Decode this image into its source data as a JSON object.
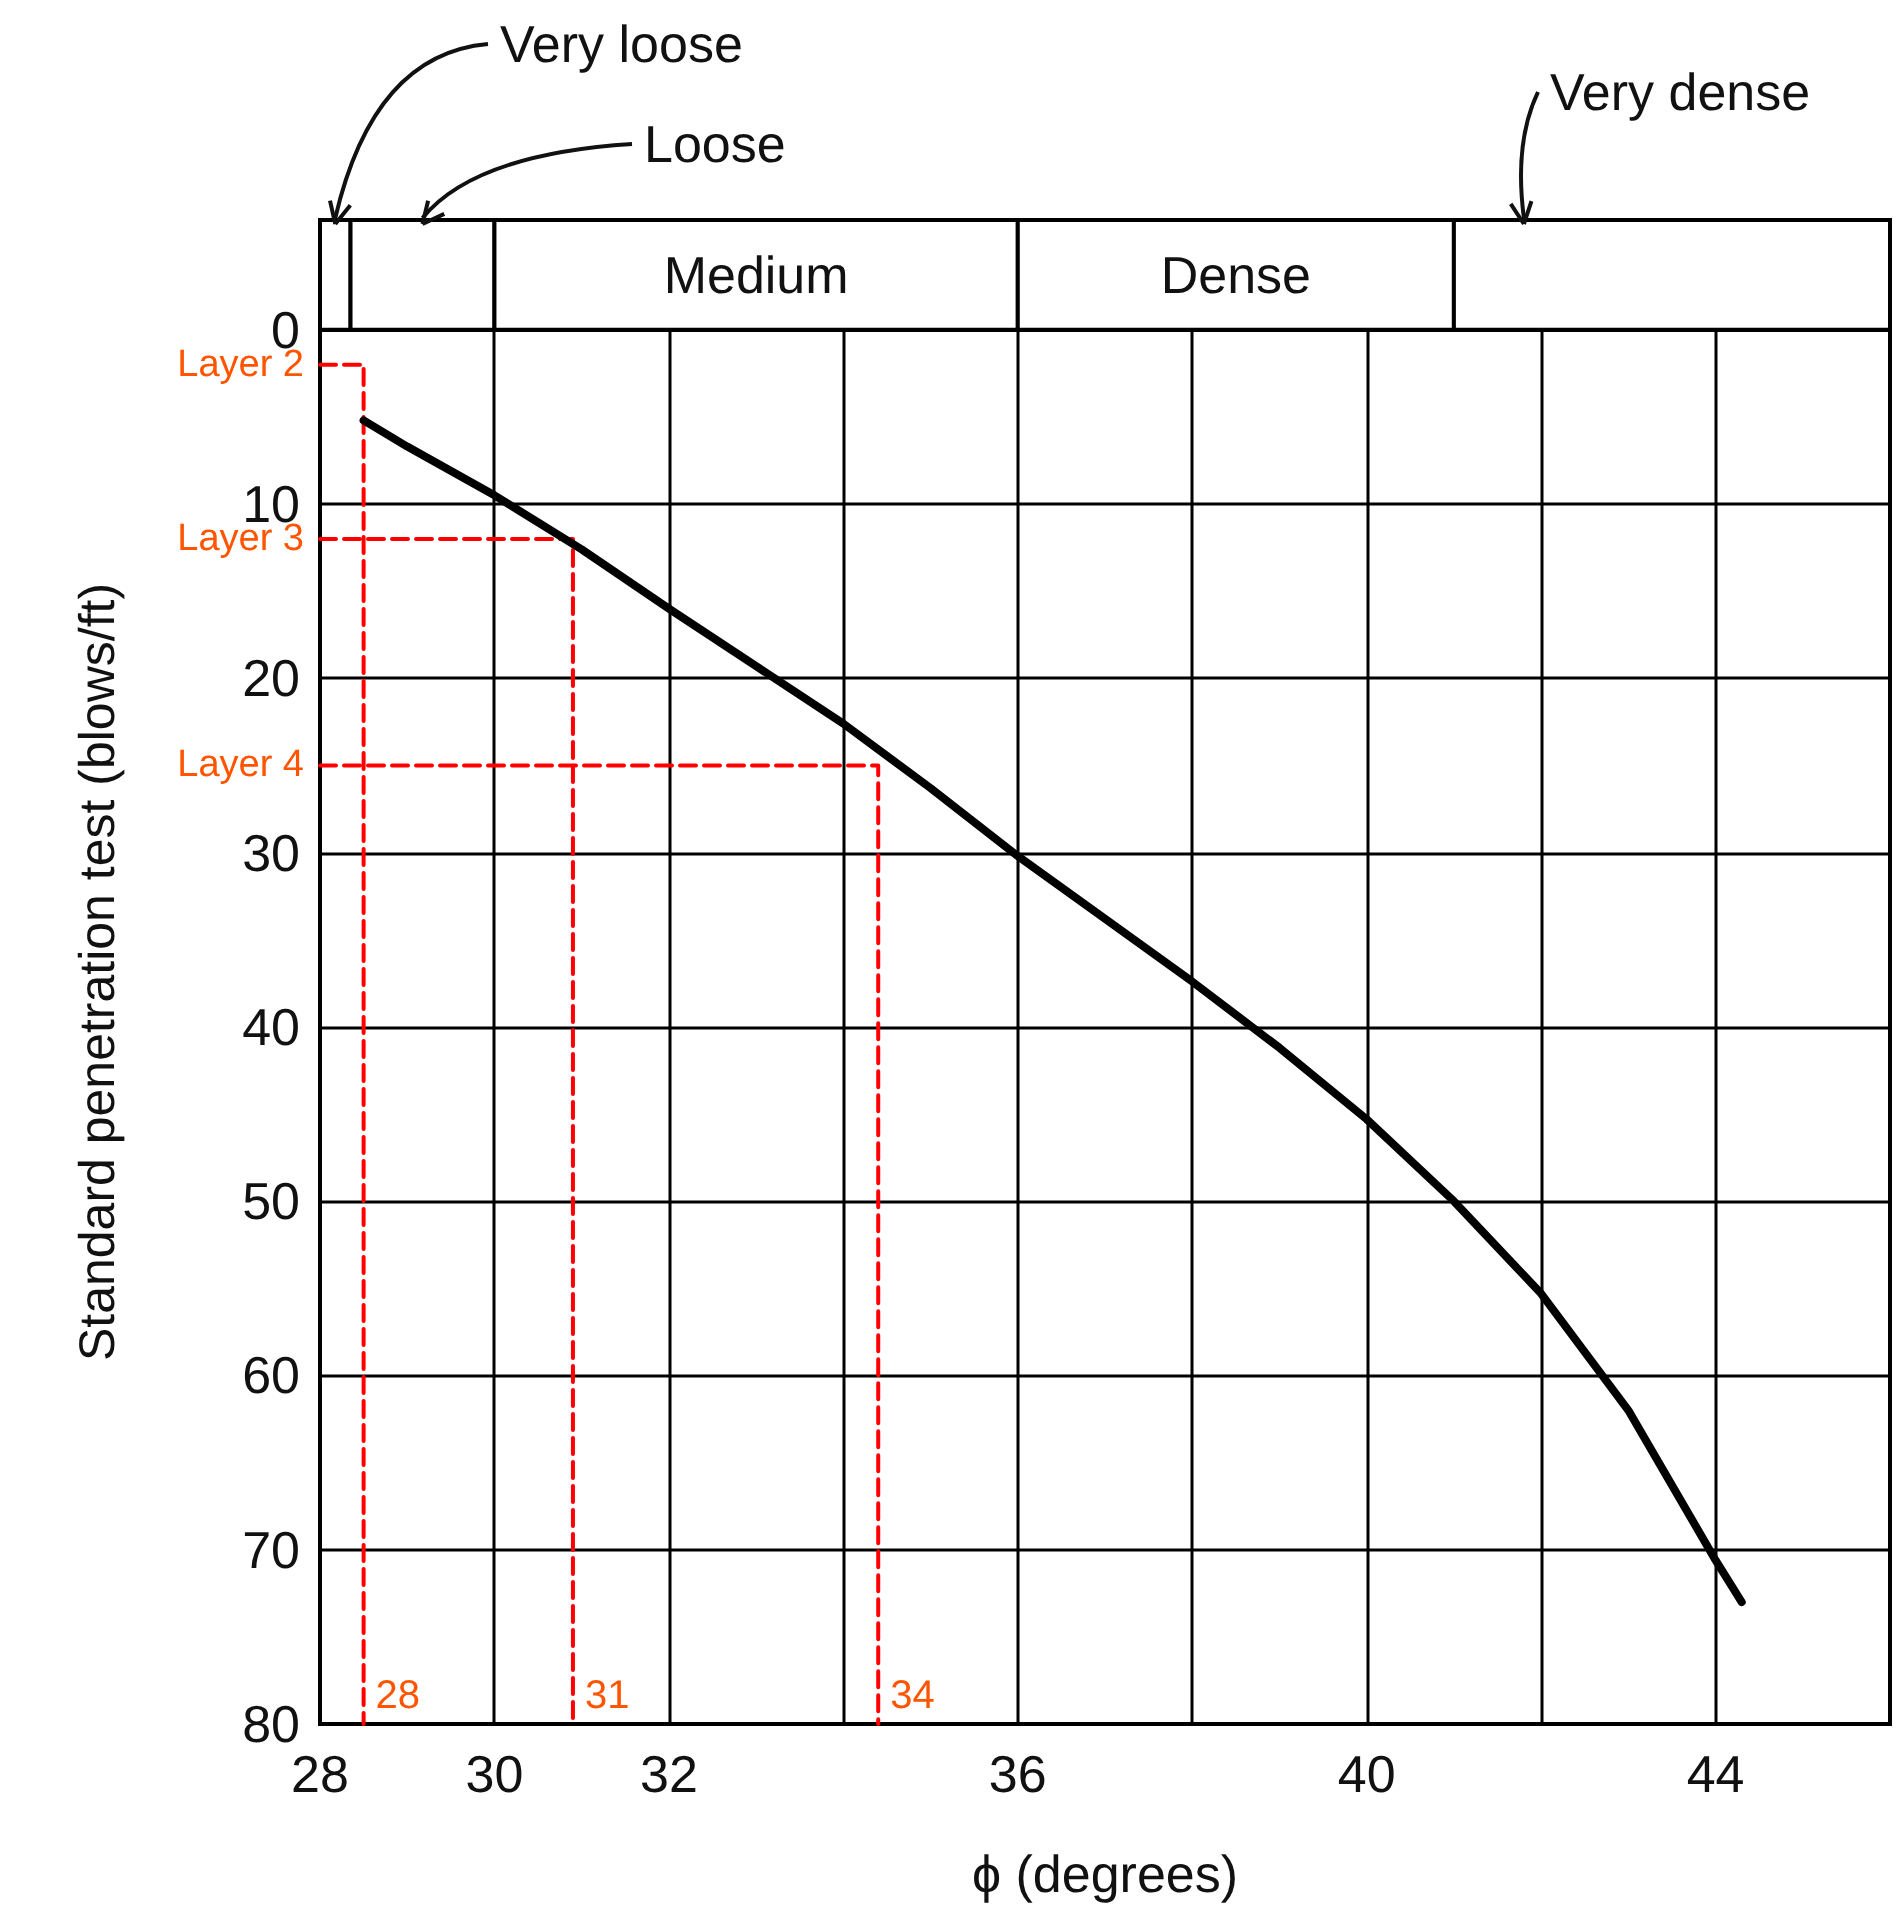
{
  "chart_data": {
    "type": "line",
    "xlabel": "ϕ (degrees)",
    "ylabel": "Standard penetration test (blows/ft)",
    "xlim": [
      28,
      46
    ],
    "xticks": [
      28,
      30,
      32,
      {
        "value": 34,
        "label": null
      },
      36,
      {
        "value": 38,
        "label": null
      },
      40,
      {
        "value": 42,
        "label": null
      },
      44
    ],
    "ylim": [
      80,
      -6.3
    ],
    "yticks": [
      0,
      10,
      20,
      30,
      40,
      50,
      60,
      70,
      80
    ],
    "grid": true,
    "marker": "none",
    "series": [
      {
        "color": "#000000",
        "line_style": "solid",
        "x": [
          28.5,
          29,
          30,
          31,
          32,
          33,
          34,
          35,
          36,
          37,
          38,
          39,
          40,
          41,
          42,
          43,
          44,
          44.3
        ],
        "values": [
          5.2,
          6.7,
          9.5,
          12.6,
          16,
          19.3,
          22.6,
          26.3,
          30.2,
          33.8,
          37.4,
          41.2,
          45.3,
          50,
          55.3,
          62,
          70.6,
          73
        ]
      },
      {
        "name": "Layer 2",
        "color": "#ff0000",
        "line_style": "dashed",
        "x": [
          28,
          28.5,
          28.5
        ],
        "values": [
          2,
          2,
          80
        ]
      },
      {
        "name": "Layer 3",
        "color": "#ff0000",
        "line_style": "dashed",
        "x": [
          28,
          30.9,
          30.9
        ],
        "values": [
          12,
          12,
          80
        ]
      },
      {
        "name": "Layer 4",
        "color": "#ff0000",
        "line_style": "dashed",
        "x": [
          28,
          34.4,
          34.4
        ],
        "values": [
          25,
          25,
          80
        ]
      }
    ],
    "bands": [
      {
        "axis": "x",
        "from": 28,
        "to": 28.35,
        "label": "Very loose"
      },
      {
        "axis": "x",
        "from": 28.35,
        "to": 30,
        "label": "Loose"
      },
      {
        "axis": "x",
        "from": 30,
        "to": 36,
        "label": "Medium"
      },
      {
        "axis": "x",
        "from": 36,
        "to": 41,
        "label": "Dense"
      },
      {
        "axis": "x",
        "from": 41,
        "to": 46,
        "label": "Very dense"
      }
    ],
    "annotations": [
      {
        "text": "28",
        "x": 28.5,
        "y": 80
      },
      {
        "text": "31",
        "x": 30.9,
        "y": 80
      },
      {
        "text": "34",
        "x": 34.4,
        "y": 80
      }
    ]
  }
}
